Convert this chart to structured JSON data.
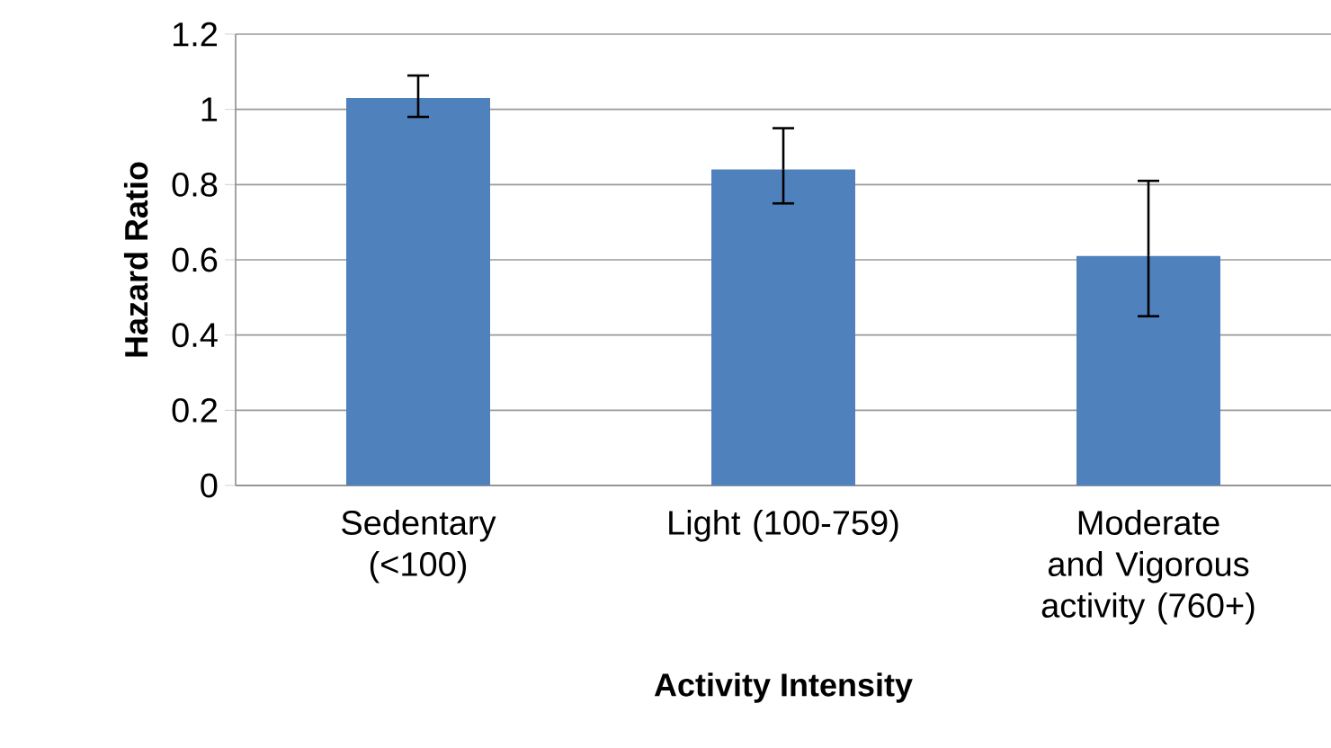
{
  "chart_data": {
    "type": "bar",
    "xlabel": "Activity Intensity",
    "ylabel": "Hazard Ratio",
    "categories": [
      "Sedentary (<100)",
      "Light (100-759)",
      "Moderate and Vigorous activity (760+)"
    ],
    "values": [
      1.03,
      0.84,
      0.61
    ],
    "color": "#4f81bd",
    "errors": [
      [
        0.98,
        1.09
      ],
      [
        0.75,
        0.95
      ],
      [
        0.45,
        0.81
      ]
    ],
    "ylim": [
      0,
      1.2
    ],
    "yticks": [
      0,
      0.2,
      0.4,
      0.6,
      0.8,
      1,
      1.2
    ],
    "grid": "y"
  }
}
